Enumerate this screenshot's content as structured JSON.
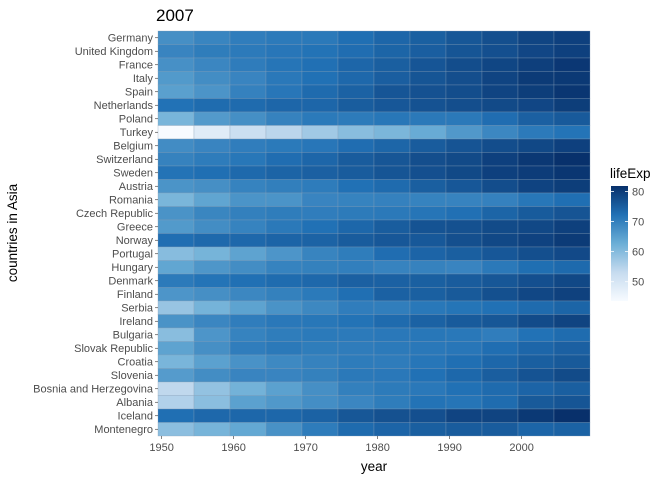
{
  "chart_data": {
    "type": "heatmap",
    "title": "2007",
    "xlabel": "year",
    "ylabel": "countries in Asia",
    "x": [
      1952,
      1957,
      1962,
      1967,
      1972,
      1977,
      1982,
      1987,
      1992,
      1997,
      2002,
      2007
    ],
    "x_ticks": [
      1950,
      1960,
      1970,
      1980,
      1990,
      2000
    ],
    "xlim": [
      1949.5,
      2009.5
    ],
    "countries": [
      "Germany",
      "United Kingdom",
      "France",
      "Italy",
      "Spain",
      "Netherlands",
      "Poland",
      "Turkey",
      "Belgium",
      "Switzerland",
      "Sweden",
      "Austria",
      "Romania",
      "Czech Republic",
      "Greece",
      "Norway",
      "Portugal",
      "Hungary",
      "Denmark",
      "Finland",
      "Serbia",
      "Ireland",
      "Bulgaria",
      "Slovak Republic",
      "Croatia",
      "Slovenia",
      "Bosnia and Herzegovina",
      "Albania",
      "Iceland",
      "Montenegro"
    ],
    "values": [
      [
        67.5,
        69.1,
        70.3,
        70.8,
        71.0,
        72.5,
        73.8,
        74.8,
        76.1,
        77.3,
        78.7,
        79.4
      ],
      [
        69.2,
        70.4,
        70.8,
        71.4,
        72.0,
        72.8,
        74.0,
        75.0,
        76.4,
        77.2,
        78.5,
        79.4
      ],
      [
        67.4,
        68.9,
        70.5,
        71.6,
        72.4,
        73.8,
        74.9,
        76.3,
        77.5,
        78.6,
        79.6,
        80.7
      ],
      [
        65.9,
        67.8,
        69.2,
        71.1,
        72.2,
        73.5,
        75.0,
        76.4,
        77.4,
        78.8,
        80.2,
        80.5
      ],
      [
        64.9,
        66.7,
        69.7,
        71.4,
        73.1,
        74.4,
        76.3,
        76.9,
        77.6,
        78.8,
        79.8,
        80.9
      ],
      [
        72.1,
        73.0,
        73.2,
        73.8,
        73.8,
        75.2,
        76.0,
        76.8,
        77.4,
        78.0,
        78.5,
        79.8
      ],
      [
        61.3,
        65.8,
        67.6,
        69.6,
        70.9,
        70.7,
        71.3,
        71.0,
        71.0,
        72.8,
        74.7,
        75.6
      ],
      [
        43.6,
        48.1,
        52.1,
        54.3,
        57.0,
        59.5,
        61.0,
        63.1,
        66.1,
        68.8,
        70.8,
        71.8
      ],
      [
        68.0,
        69.2,
        70.3,
        70.9,
        71.4,
        72.8,
        73.9,
        75.4,
        76.5,
        77.5,
        78.3,
        79.4
      ],
      [
        69.6,
        70.6,
        71.3,
        72.8,
        73.8,
        75.4,
        76.2,
        77.4,
        78.0,
        79.4,
        80.6,
        81.7
      ],
      [
        71.9,
        72.5,
        73.4,
        74.2,
        74.7,
        75.4,
        76.4,
        77.2,
        78.2,
        79.4,
        80.0,
        80.9
      ],
      [
        66.8,
        67.5,
        69.5,
        70.1,
        70.6,
        72.2,
        73.2,
        74.9,
        76.0,
        77.5,
        79.0,
        79.8
      ],
      [
        61.1,
        64.1,
        66.8,
        66.8,
        69.2,
        69.5,
        69.7,
        69.5,
        69.4,
        69.7,
        71.3,
        72.5
      ],
      [
        66.9,
        69.0,
        69.9,
        70.4,
        70.3,
        70.7,
        71.0,
        71.6,
        72.4,
        74.0,
        75.5,
        76.5
      ],
      [
        65.9,
        67.9,
        69.5,
        71.0,
        72.3,
        73.7,
        75.2,
        76.7,
        77.0,
        77.9,
        78.3,
        79.5
      ],
      [
        72.7,
        73.4,
        73.5,
        74.1,
        74.3,
        75.4,
        76.0,
        75.9,
        77.3,
        78.3,
        79.1,
        80.2
      ],
      [
        59.8,
        61.5,
        64.4,
        66.6,
        69.3,
        70.4,
        72.8,
        74.1,
        74.9,
        76.0,
        77.3,
        78.1
      ],
      [
        64.0,
        66.4,
        67.8,
        69.5,
        69.8,
        70.0,
        69.4,
        69.6,
        69.2,
        71.0,
        72.6,
        73.3
      ],
      [
        70.8,
        71.8,
        72.4,
        73.0,
        73.5,
        74.7,
        74.6,
        74.8,
        75.3,
        76.1,
        77.2,
        78.3
      ],
      [
        66.6,
        67.5,
        68.8,
        69.8,
        70.9,
        72.5,
        74.6,
        74.8,
        75.7,
        77.1,
        78.4,
        79.3
      ],
      [
        58.0,
        61.7,
        64.5,
        66.9,
        68.7,
        70.3,
        70.2,
        71.2,
        71.7,
        72.2,
        73.2,
        74.0
      ],
      [
        66.9,
        68.9,
        70.3,
        71.1,
        71.3,
        72.0,
        73.1,
        74.4,
        75.5,
        76.1,
        77.8,
        78.9
      ],
      [
        59.6,
        66.6,
        69.5,
        70.4,
        70.9,
        70.8,
        71.1,
        71.3,
        71.2,
        70.3,
        72.1,
        73.0
      ],
      [
        64.4,
        67.5,
        70.3,
        71.0,
        70.4,
        70.5,
        70.8,
        71.1,
        71.4,
        72.7,
        73.8,
        74.7
      ],
      [
        61.2,
        64.8,
        67.1,
        68.5,
        69.6,
        70.6,
        70.5,
        71.5,
        72.5,
        73.7,
        74.9,
        75.7
      ],
      [
        65.6,
        67.9,
        69.2,
        69.2,
        69.8,
        70.97,
        71.1,
        72.3,
        73.6,
        75.1,
        76.7,
        77.9
      ],
      [
        53.8,
        58.5,
        61.9,
        64.8,
        67.5,
        69.9,
        70.7,
        71.1,
        72.2,
        73.2,
        74.1,
        74.9
      ],
      [
        55.2,
        59.3,
        64.8,
        66.2,
        67.7,
        68.9,
        70.4,
        72.0,
        71.6,
        73.0,
        75.7,
        76.4
      ],
      [
        72.5,
        73.5,
        73.7,
        73.7,
        74.5,
        76.1,
        76.99,
        77.2,
        78.8,
        78.9,
        80.5,
        81.8
      ],
      [
        59.2,
        61.4,
        63.7,
        67.2,
        70.6,
        73.1,
        74.1,
        74.9,
        75.4,
        75.4,
        73.98,
        74.5
      ]
    ],
    "legend": {
      "title": "lifeExp",
      "ticks": [
        50,
        60,
        70,
        80
      ],
      "range": [
        43.6,
        81.8
      ],
      "colors": [
        "#f7fbff",
        "#c6dbef",
        "#6baed6",
        "#2171b5",
        "#08306b"
      ],
      "placement": "right"
    },
    "grid": true,
    "panel_background": "#ebebeb"
  }
}
